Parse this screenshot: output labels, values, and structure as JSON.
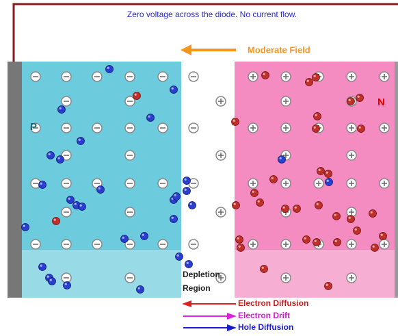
{
  "header": {
    "title": "Zero voltage across the diode. No current flow."
  },
  "field": {
    "label": "Moderate Field"
  },
  "regions": {
    "p": "P",
    "n": "N",
    "depletion": [
      "Depletion",
      "Region"
    ]
  },
  "legend": [
    "Electron Diffusion",
    "Electron Drift",
    "Hole Diffusion"
  ]
}
